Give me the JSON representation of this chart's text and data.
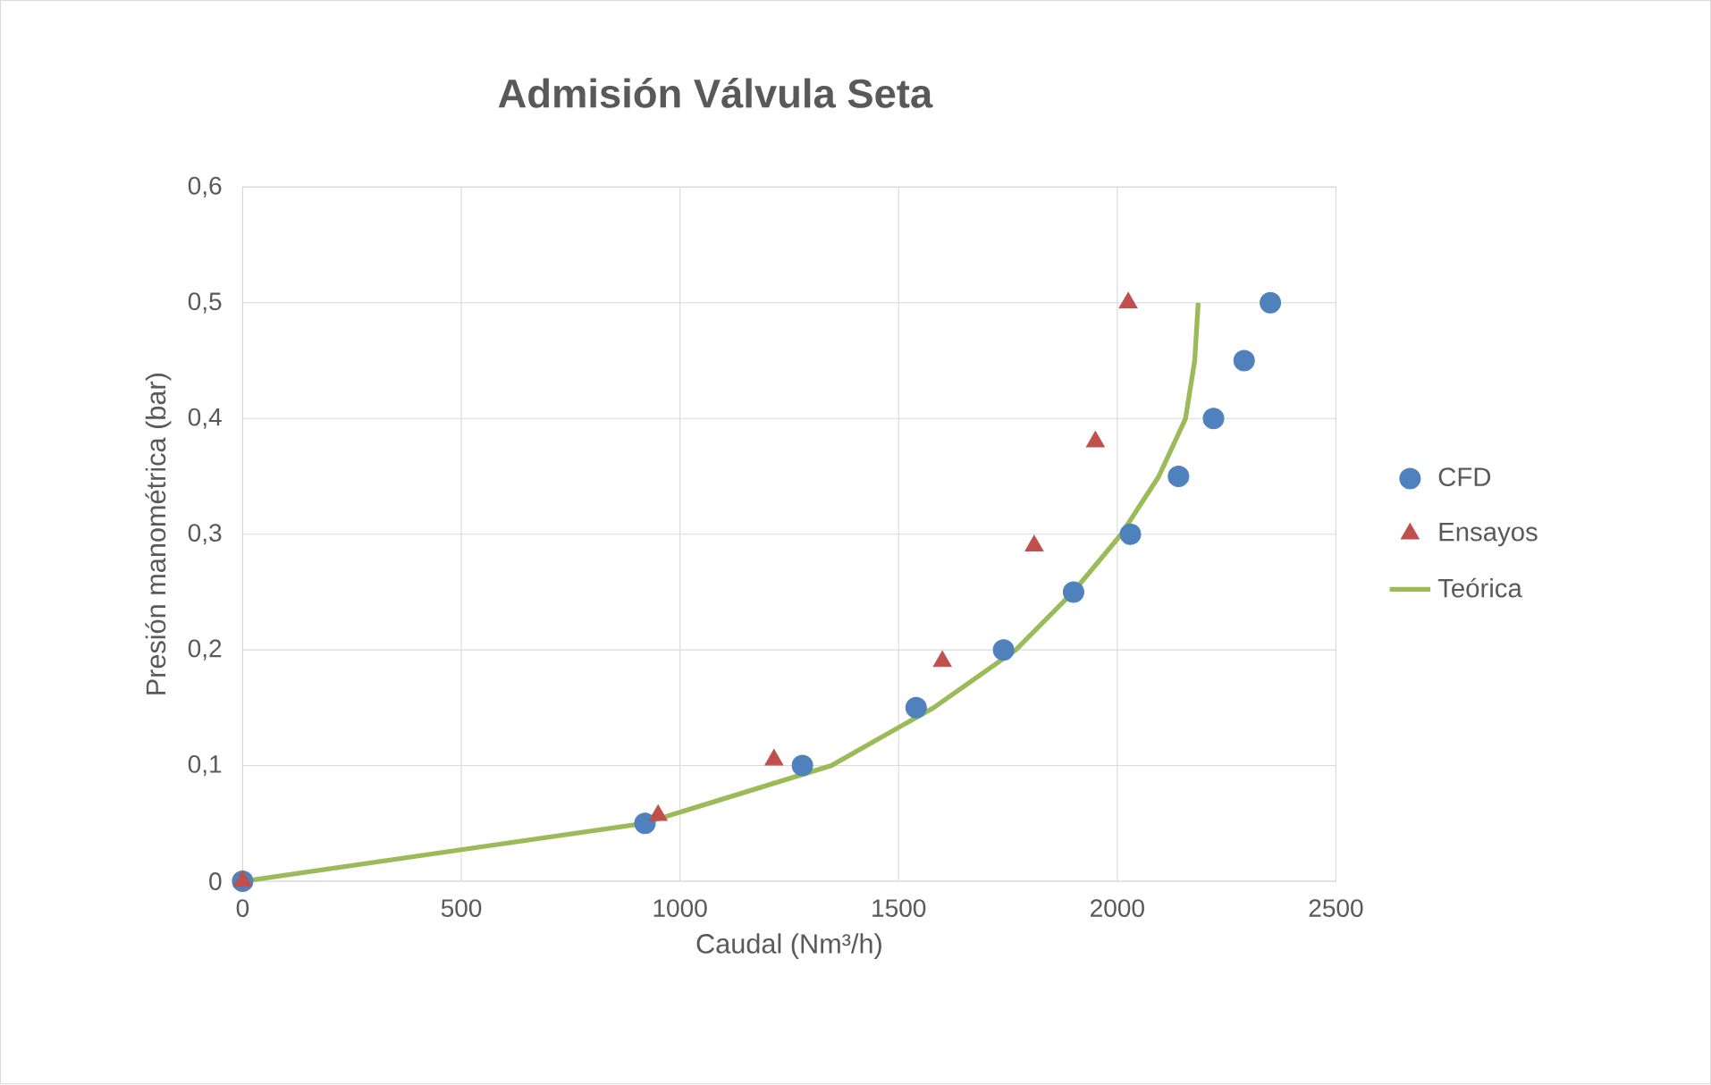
{
  "chart_data": {
    "type": "scatter",
    "title": "Admisión Válvula Seta",
    "xlabel": "Caudal (Nm³/h)",
    "ylabel": "Presión manométrica (bar)",
    "series": [
      {
        "name": "CFD",
        "marker": "circle",
        "color": "#4f81bd",
        "x": [
          0,
          920,
          1280,
          1540,
          1740,
          1900,
          2030,
          2140,
          2220,
          2290,
          2350
        ],
        "values": [
          0,
          0.05,
          0.1,
          0.15,
          0.2,
          0.25,
          0.3,
          0.35,
          0.4,
          0.45,
          0.5
        ]
      },
      {
        "name": "Ensayos",
        "marker": "triangle",
        "color": "#c0504d",
        "x": [
          0,
          950,
          1215,
          1600,
          1810,
          1950,
          2025
        ],
        "values": [
          0,
          0.057,
          0.105,
          0.19,
          0.29,
          0.38,
          0.5
        ]
      },
      {
        "name": "Teórica",
        "type": "line",
        "marker": "none",
        "color": "#9bbb59",
        "x": [
          0,
          917,
          1346,
          1580,
          1768,
          1899,
          2009,
          2095,
          2156,
          2177,
          2185
        ],
        "values": [
          0,
          0.05,
          0.1,
          0.15,
          0.2,
          0.25,
          0.3,
          0.35,
          0.4,
          0.45,
          0.5
        ]
      }
    ],
    "xlim": [
      0,
      2500
    ],
    "ylim": [
      0,
      0.6
    ],
    "xticks": [
      0,
      500,
      1000,
      1500,
      2000,
      2500
    ],
    "yticks": [
      0,
      {
        "value": 0.1,
        "label": "0,1"
      },
      {
        "value": 0.2,
        "label": "0,2"
      },
      {
        "value": 0.3,
        "label": "0,3"
      },
      {
        "value": 0.4,
        "label": "0,4"
      },
      {
        "value": 0.5,
        "label": "0,5"
      },
      {
        "value": 0.6,
        "label": "0,6"
      }
    ],
    "grid": true,
    "legend": "right"
  }
}
